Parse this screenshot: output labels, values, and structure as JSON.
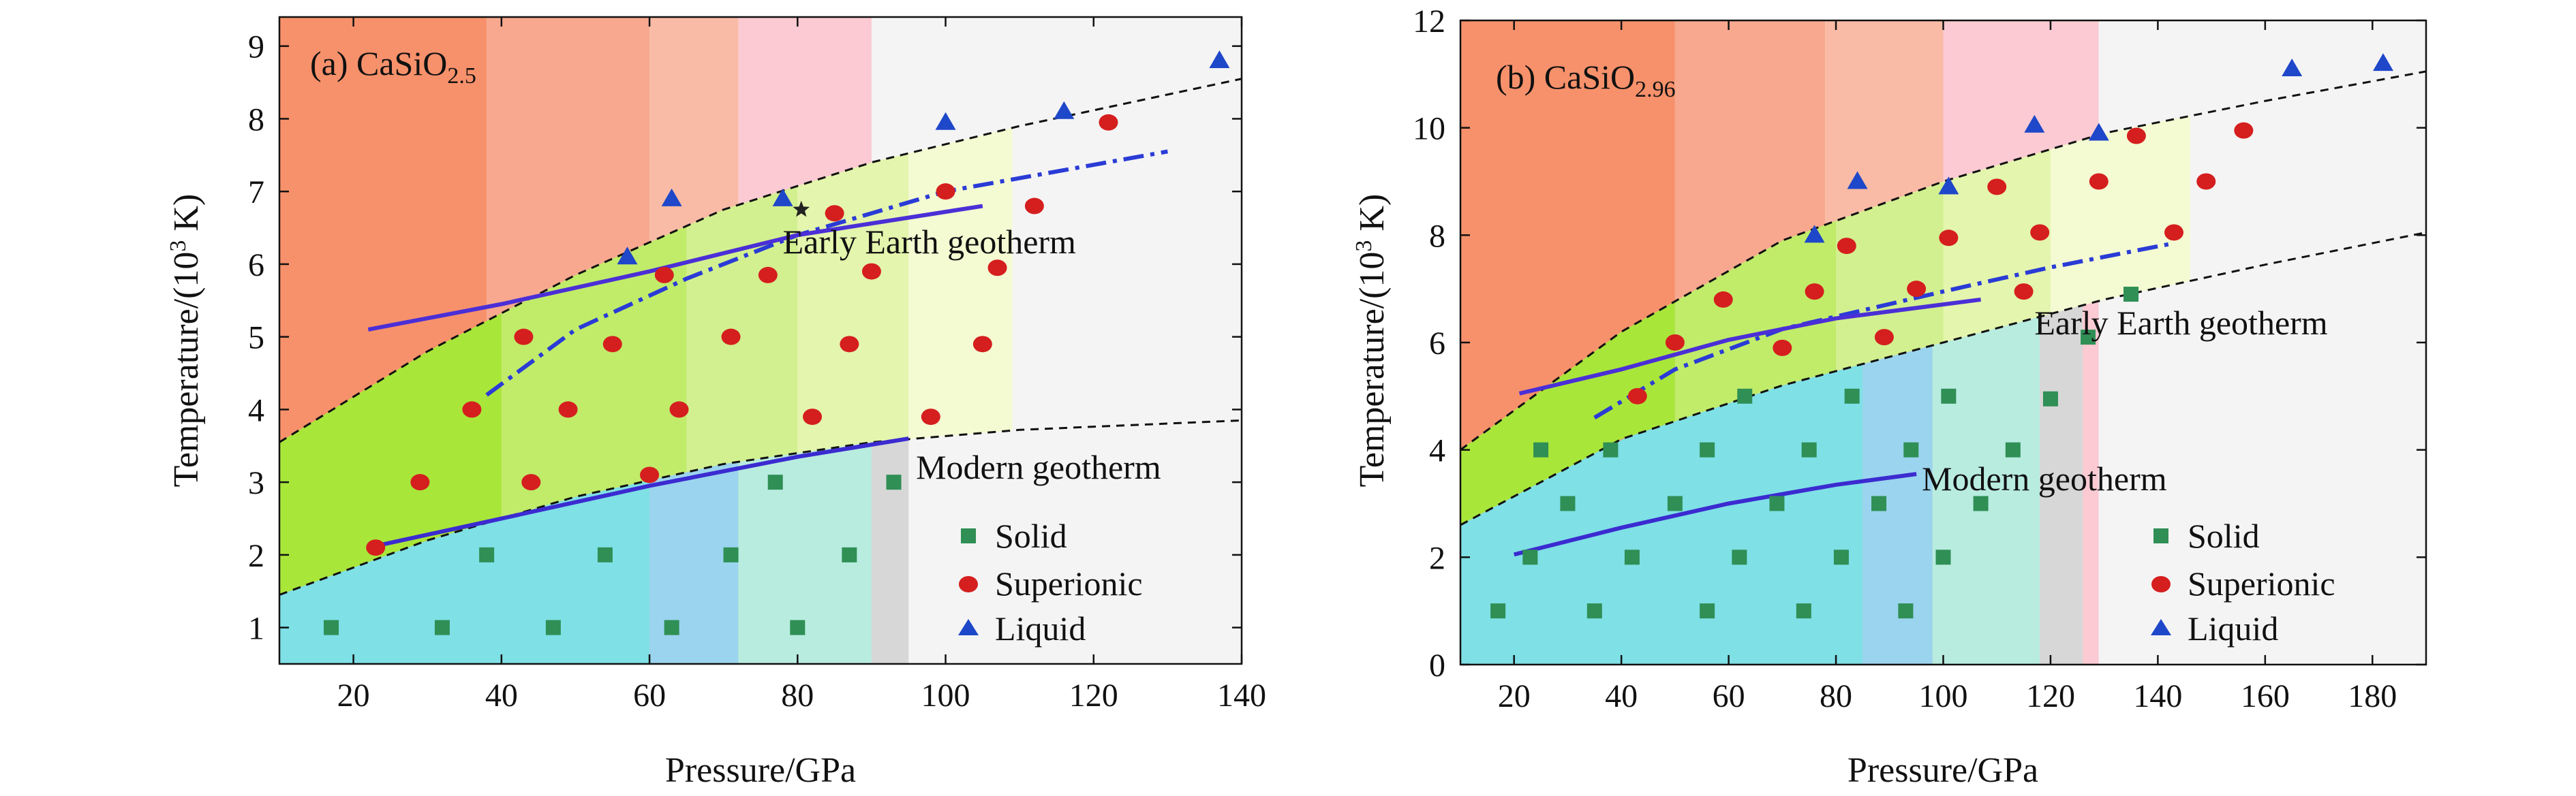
{
  "chart_data": [
    {
      "id": "a",
      "type": "scatter",
      "panel_label": "(a) CaSiO",
      "panel_label_sub": "2.5",
      "xlabel": "Pressure/GPa",
      "ylabel": "Temperature/(10",
      "ylabel_sup": "3",
      "ylabel_end": " K)",
      "xlim": [
        10,
        140
      ],
      "ylim": [
        0.5,
        9.4
      ],
      "xticks": [
        20,
        40,
        60,
        80,
        100,
        120,
        140
      ],
      "yticks": [
        1,
        2,
        3,
        4,
        5,
        6,
        7,
        8,
        9
      ],
      "grid": false,
      "legend_position": "bottom-right",
      "background_bands": [
        {
          "x0": 10,
          "x1": 38,
          "color": "#f7916b"
        },
        {
          "x0": 38,
          "x1": 60,
          "color": "#f7a88e"
        },
        {
          "x0": 60,
          "x1": 72,
          "color": "#f9bba6"
        },
        {
          "x0": 72,
          "x1": 90,
          "color": "#fbcad3"
        },
        {
          "x0": 90,
          "x1": 140,
          "color": "#f4f4f4"
        }
      ],
      "middle_bands": [
        {
          "x0": 10,
          "x1": 40,
          "color": "#a9e63a"
        },
        {
          "x0": 40,
          "x1": 65,
          "color": "#c0ec6a"
        },
        {
          "x0": 65,
          "x1": 80,
          "color": "#d2f08f"
        },
        {
          "x0": 80,
          "x1": 95,
          "color": "#e4f5ad"
        },
        {
          "x0": 95,
          "x1": 109,
          "color": "#f4fbd2"
        }
      ],
      "lower_bands": [
        {
          "x0": 10,
          "x1": 60,
          "color": "#7fe0e6"
        },
        {
          "x0": 60,
          "x1": 72,
          "color": "#9bd4ee"
        },
        {
          "x0": 72,
          "x1": 90,
          "color": "#b8ecdf"
        },
        {
          "x0": 90,
          "x1": 95,
          "color": "#d7d7d7"
        }
      ],
      "upper_boundary": {
        "x": [
          10,
          30,
          50,
          70,
          90,
          110,
          140
        ],
        "y": [
          3.55,
          4.8,
          5.85,
          6.75,
          7.4,
          7.9,
          8.55
        ]
      },
      "lower_boundary": {
        "x": [
          10,
          30,
          50,
          70,
          90,
          110,
          140
        ],
        "y": [
          1.45,
          2.2,
          2.8,
          3.25,
          3.55,
          3.72,
          3.85
        ]
      },
      "early_geotherm": {
        "x": [
          22,
          40,
          60,
          80,
          105
        ],
        "y": [
          5.1,
          5.45,
          5.9,
          6.4,
          6.8
        ]
      },
      "dashdot_line": {
        "x": [
          38,
          50,
          65,
          80,
          100,
          130
        ],
        "y": [
          4.2,
          5.1,
          5.8,
          6.4,
          7.0,
          7.55
        ]
      },
      "modern_geotherm": {
        "x": [
          22,
          40,
          60,
          80,
          95
        ],
        "y": [
          2.1,
          2.5,
          2.95,
          3.35,
          3.6
        ]
      },
      "star": {
        "x": 80.5,
        "y": 6.75
      },
      "early_label": "Early Earth geotherm",
      "early_label_pos": {
        "x": 78,
        "y": 6.15
      },
      "modern_label": "Modern geotherm",
      "modern_label_pos": {
        "x": 96,
        "y": 3.05
      },
      "legend": [
        "Solid",
        "Superionic",
        "Liquid"
      ],
      "series": [
        {
          "name": "Solid",
          "x": [
            17,
            32,
            47,
            63,
            80,
            38,
            54,
            71,
            87,
            77,
            93
          ],
          "y": [
            1,
            1,
            1,
            1,
            1,
            2,
            2,
            2,
            2,
            3,
            3
          ]
        },
        {
          "name": "Superionic",
          "x": [
            23,
            29,
            44,
            60,
            36,
            49,
            64,
            82,
            98,
            43,
            55,
            71,
            87,
            105,
            62,
            76,
            90,
            107,
            85,
            100,
            112,
            122
          ],
          "y": [
            2.1,
            3,
            3,
            3.1,
            4,
            4,
            4,
            3.9,
            3.9,
            5,
            4.9,
            5,
            4.9,
            4.9,
            5.85,
            5.85,
            5.9,
            5.95,
            6.7,
            7,
            6.8,
            7.95
          ]
        },
        {
          "name": "Liquid",
          "x": [
            57,
            63,
            78,
            100,
            116,
            137
          ],
          "y": [
            6.1,
            6.9,
            6.9,
            7.95,
            8.1,
            8.8
          ]
        }
      ]
    },
    {
      "id": "b",
      "type": "scatter",
      "panel_label": "(b) CaSiO",
      "panel_label_sub": "2.96",
      "xlabel": "Pressure/GPa",
      "ylabel": "Temperature/(10",
      "ylabel_sup": "3",
      "ylabel_end": " K)",
      "xlim": [
        10,
        190
      ],
      "ylim": [
        0,
        12
      ],
      "xticks": [
        20,
        40,
        60,
        80,
        100,
        120,
        140,
        160,
        180
      ],
      "yticks": [
        0,
        2,
        4,
        6,
        8,
        10,
        12
      ],
      "grid": false,
      "legend_position": "bottom-right",
      "background_bands": [
        {
          "x0": 10,
          "x1": 50,
          "color": "#f7916b"
        },
        {
          "x0": 50,
          "x1": 78,
          "color": "#f7a88e"
        },
        {
          "x0": 78,
          "x1": 100,
          "color": "#f9bba6"
        },
        {
          "x0": 100,
          "x1": 129,
          "color": "#fbcad3"
        },
        {
          "x0": 129,
          "x1": 190,
          "color": "#f4f4f4"
        }
      ],
      "middle_bands": [
        {
          "x0": 10,
          "x1": 50,
          "color": "#a9e63a"
        },
        {
          "x0": 50,
          "x1": 80,
          "color": "#c0ec6a"
        },
        {
          "x0": 80,
          "x1": 100,
          "color": "#d2f08f"
        },
        {
          "x0": 100,
          "x1": 120,
          "color": "#e4f5ad"
        },
        {
          "x0": 120,
          "x1": 146,
          "color": "#f4fbd2"
        }
      ],
      "lower_bands": [
        {
          "x0": 10,
          "x1": 85,
          "color": "#7fe0e6"
        },
        {
          "x0": 85,
          "x1": 98,
          "color": "#9bd4ee"
        },
        {
          "x0": 98,
          "x1": 118,
          "color": "#b8ecdf"
        },
        {
          "x0": 118,
          "x1": 126,
          "color": "#d7d7d7"
        }
      ],
      "upper_boundary": {
        "x": [
          10,
          40,
          70,
          100,
          130,
          160,
          190
        ],
        "y": [
          4.0,
          6.2,
          7.9,
          9.0,
          9.9,
          10.5,
          11.05
        ]
      },
      "lower_boundary": {
        "x": [
          10,
          40,
          70,
          100,
          130,
          160,
          190
        ],
        "y": [
          2.6,
          4.2,
          5.2,
          6.0,
          6.8,
          7.45,
          8.05
        ]
      },
      "early_geotherm": {
        "x": [
          21,
          40,
          60,
          80,
          107
        ],
        "y": [
          5.05,
          5.5,
          6.05,
          6.45,
          6.8
        ]
      },
      "dashdot_line": {
        "x": [
          35,
          50,
          70,
          100,
          120,
          143
        ],
        "y": [
          4.6,
          5.5,
          6.25,
          6.95,
          7.4,
          7.85
        ]
      },
      "modern_geotherm": {
        "x": [
          20,
          40,
          60,
          80,
          95
        ],
        "y": [
          2.05,
          2.55,
          3.0,
          3.35,
          3.55
        ]
      },
      "star": null,
      "early_label": "Early Earth geotherm",
      "early_label_pos": {
        "x": 117,
        "y": 6.15
      },
      "modern_label": "Modern geotherm",
      "modern_label_pos": {
        "x": 96,
        "y": 3.25
      },
      "legend": [
        "Solid",
        "Superionic",
        "Liquid"
      ],
      "series": [
        {
          "name": "Solid",
          "x": [
            17,
            35,
            56,
            74,
            93,
            23,
            42,
            62,
            81,
            100,
            30,
            50,
            69,
            88,
            107,
            38,
            56,
            75,
            94,
            113,
            25,
            63,
            83,
            101,
            120,
            127,
            135
          ],
          "y": [
            1,
            1,
            1,
            1,
            1,
            2,
            2,
            2,
            2,
            2,
            3,
            3,
            3,
            3,
            3,
            4,
            4,
            4,
            4,
            4,
            4,
            5,
            5,
            5,
            4.95,
            6.1,
            6.9
          ]
        },
        {
          "name": "Superionic",
          "x": [
            43,
            50,
            70,
            89,
            59,
            76,
            95,
            82,
            101,
            118,
            110,
            129,
            149,
            143,
            136,
            156,
            115
          ],
          "y": [
            5,
            6,
            5.9,
            6.1,
            6.8,
            6.95,
            7,
            7.8,
            7.95,
            8.05,
            8.9,
            9,
            9,
            8.05,
            9.85,
            9.95,
            6.95
          ]
        },
        {
          "name": "Liquid",
          "x": [
            76,
            84,
            101,
            117,
            129,
            165,
            182
          ],
          "y": [
            8,
            9,
            8.9,
            10.05,
            9.9,
            11.1,
            11.2
          ]
        }
      ]
    }
  ]
}
